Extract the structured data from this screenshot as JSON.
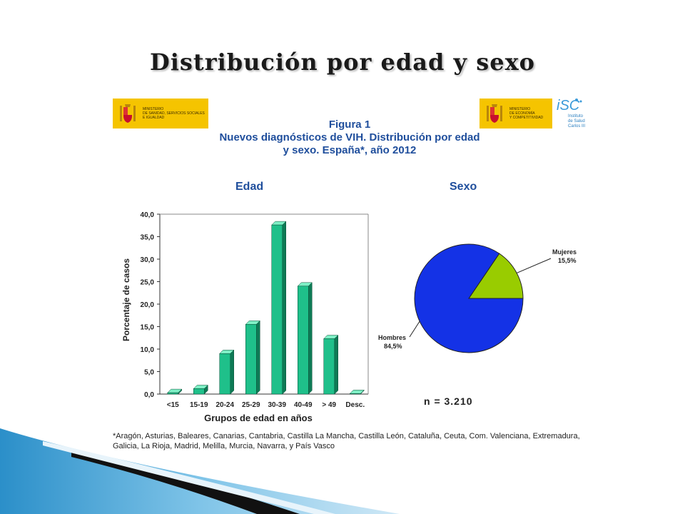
{
  "slide": {
    "title": "Distribución por edad y sexo"
  },
  "logos": {
    "left_ministry": "MINISTERIO\nDE SANIDAD, SERVICIOS SOCIALES\nE IGUALDAD",
    "right_ministry": "MINISTERIO\nDE ECONOMÍA\nY COMPETITIVIDAD",
    "isc_name": "Instituto\nde Salud\nCarlos III",
    "isc_mark": "iSC"
  },
  "figure": {
    "label": "Figura 1",
    "title_line1": "Nuevos diagnósticos de VIH. Distribución por edad",
    "title_line2": "y sexo. España*, año 2012",
    "edad_heading": "Edad",
    "sexo_heading": "Sexo",
    "n_label": "n = 3.210",
    "footnote": "*Aragón, Asturias, Baleares, Canarias, Cantabria, Castilla La Mancha, Castilla León, Cataluña, Ceuta, Com. Valenciana, Extremadura, Galicia, La Rioja, Madrid,  Melilla, Murcia, Navarra, y País Vasco"
  },
  "chart_data": [
    {
      "type": "bar",
      "xlabel": "Grupos de edad en años",
      "ylabel": "Porcentaje de casos",
      "categories": [
        "<15",
        "15-19",
        "20-24",
        "25-29",
        "30-39",
        "40-49",
        "> 49",
        "Desc."
      ],
      "values": [
        0.3,
        1.2,
        9.0,
        15.5,
        37.6,
        24.0,
        12.3,
        0.1
      ],
      "ylim": [
        0,
        40
      ],
      "yticks": [
        "0,0",
        "5,0",
        "10,0",
        "15,0",
        "20,0",
        "25,0",
        "30,0",
        "35,0",
        "40,0"
      ],
      "grid": false,
      "bar_color": "#1fc08a",
      "bar_side_color": "#0e7a55"
    },
    {
      "type": "pie",
      "slices": [
        {
          "name": "Hombres",
          "value": 84.5,
          "label": "84,5%",
          "color": "#1432e6"
        },
        {
          "name": "Mujeres",
          "value": 15.5,
          "label": "15,5%",
          "color": "#99cc00"
        }
      ]
    }
  ]
}
